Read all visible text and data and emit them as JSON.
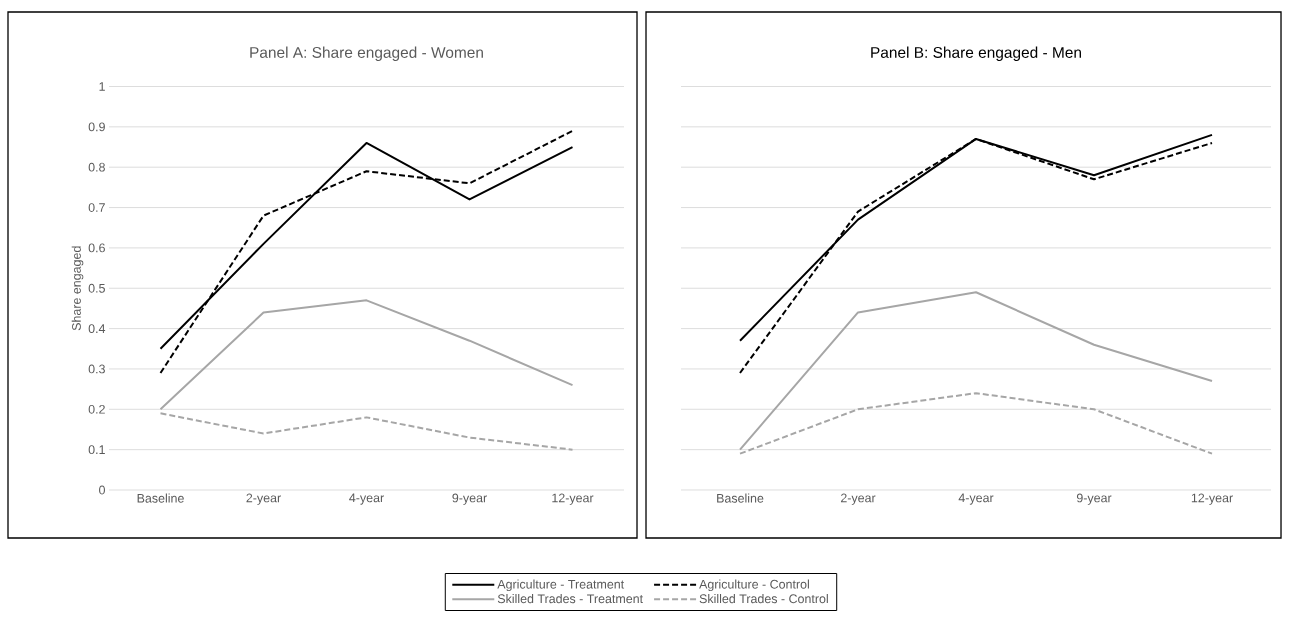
{
  "chart_data": [
    {
      "type": "line",
      "title": "Panel A: Share engaged - Women",
      "ylabel": "Share engaged",
      "categories": [
        "Baseline",
        "2-year",
        "4-year",
        "9-year",
        "12-year"
      ],
      "series": [
        {
          "name": "Agriculture - Treatment",
          "color": "#000000",
          "line_style": "solid",
          "values": [
            0.35,
            0.61,
            0.86,
            0.72,
            0.85
          ]
        },
        {
          "name": "Agriculture - Control",
          "color": "#000000",
          "line_style": "dashed",
          "values": [
            0.29,
            0.68,
            0.79,
            0.76,
            0.89
          ]
        },
        {
          "name": "Skilled Trades - Treatment",
          "color": "#a6a6a6",
          "line_style": "solid",
          "values": [
            0.2,
            0.44,
            0.47,
            0.37,
            0.26
          ]
        },
        {
          "name": "Skilled Trades - Control",
          "color": "#a6a6a6",
          "line_style": "dashed",
          "values": [
            0.19,
            0.14,
            0.18,
            0.13,
            0.1
          ]
        }
      ],
      "ylim": [
        0,
        1
      ],
      "yticks": [
        0,
        0.1,
        0.2,
        0.3,
        0.4,
        0.5,
        0.6,
        0.7,
        0.8,
        0.9,
        1
      ],
      "grid": "y",
      "legend": "bottom"
    },
    {
      "type": "line",
      "title": "Panel B: Share engaged - Men",
      "categories": [
        "Baseline",
        "2-year",
        "4-year",
        "9-year",
        "12-year"
      ],
      "series": [
        {
          "color": "#000000",
          "line_style": "solid",
          "values": [
            0.37,
            0.67,
            0.87,
            0.78,
            0.88
          ]
        },
        {
          "color": "#000000",
          "line_style": "dashed",
          "values": [
            0.29,
            0.69,
            0.87,
            0.77,
            0.86
          ]
        },
        {
          "color": "#a6a6a6",
          "line_style": "solid",
          "values": [
            0.1,
            0.44,
            0.49,
            0.36,
            0.27
          ]
        },
        {
          "color": "#a6a6a6",
          "line_style": "dashed",
          "values": [
            0.09,
            0.2,
            0.24,
            0.2,
            0.09
          ]
        }
      ],
      "ylim": [
        0,
        1
      ],
      "yticks": [
        0,
        0.1,
        0.2,
        0.3,
        0.4,
        0.5,
        0.6,
        0.7,
        0.8,
        0.9,
        1
      ],
      "grid": "y",
      "tick_labels": "x"
    }
  ]
}
